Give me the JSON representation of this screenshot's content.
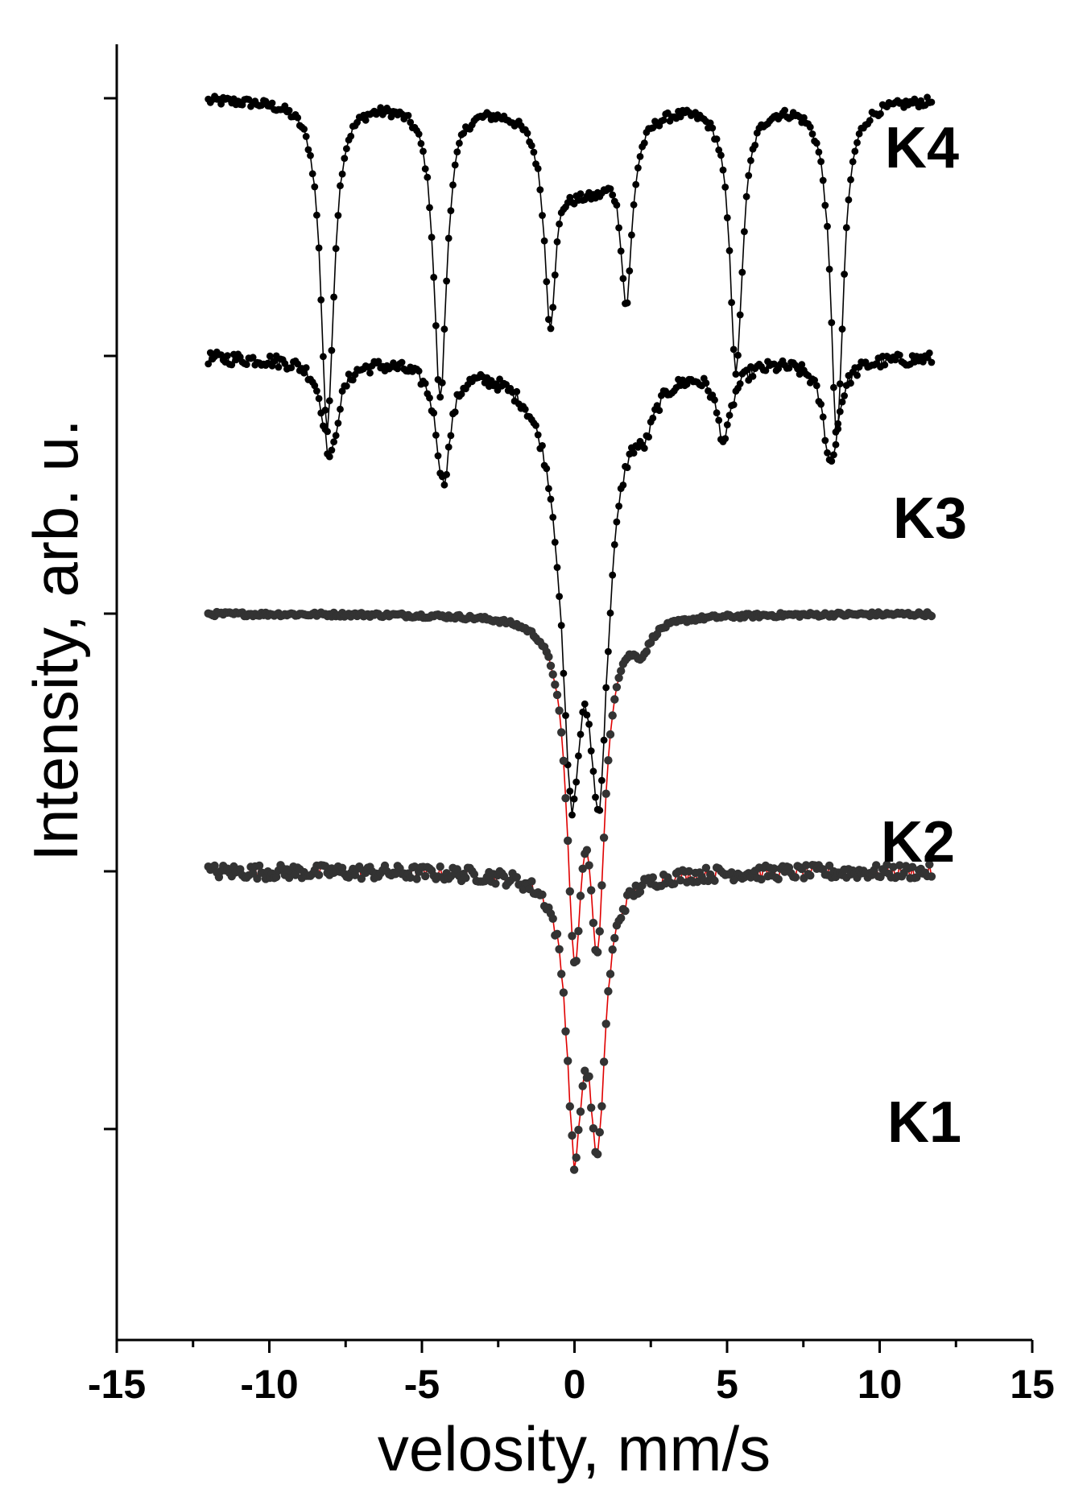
{
  "chart_data": {
    "type": "scatter",
    "xlabel": "velosity, mm/s",
    "ylabel": "Intensity, arb. u.",
    "xlim": [
      -15,
      15
    ],
    "x_ticks": [
      "-15",
      "-10",
      "-5",
      "0",
      "5",
      "10",
      "15"
    ],
    "y_tick_labels": "none",
    "grid": false,
    "legend": "none",
    "series": [
      {
        "name": "K4",
        "marker_color": "#000000",
        "line_color": "#000000",
        "baseline": 1.0,
        "peaks": [
          {
            "x": -8.1,
            "depth": 1.28,
            "width": 0.25
          },
          {
            "x": -4.4,
            "depth": 1.15,
            "width": 0.25
          },
          {
            "x": -0.8,
            "depth": 0.7,
            "width": 0.22
          },
          {
            "x": 1.7,
            "depth": 0.66,
            "width": 0.22
          },
          {
            "x": 5.3,
            "depth": 1.04,
            "width": 0.25
          },
          {
            "x": 8.6,
            "depth": 1.3,
            "width": 0.25
          },
          {
            "x": -0.1,
            "depth": 0.22,
            "width": 0.8
          },
          {
            "x": 0.8,
            "depth": 0.22,
            "width": 0.8
          }
        ]
      },
      {
        "name": "K3",
        "marker_color": "#000000",
        "line_color": "#000000",
        "baseline": 0.0,
        "peaks": [
          {
            "x": -8.0,
            "depth": 0.38,
            "width": 0.3
          },
          {
            "x": -4.3,
            "depth": 0.45,
            "width": 0.28
          },
          {
            "x": 4.9,
            "depth": 0.28,
            "width": 0.3
          },
          {
            "x": 8.4,
            "depth": 0.4,
            "width": 0.3
          },
          {
            "x": -0.1,
            "depth": 1.3,
            "width": 0.38
          },
          {
            "x": 0.8,
            "depth": 1.3,
            "width": 0.38
          },
          {
            "x": 2.3,
            "depth": 0.14,
            "width": 0.35
          },
          {
            "x": 0.35,
            "depth": 0.28,
            "width": 1.3
          }
        ]
      },
      {
        "name": "K2",
        "marker_color": "#333333",
        "line_color": "#e00000",
        "baseline": -1.0,
        "peaks": [
          {
            "x": 0.0,
            "depth": 1.2,
            "width": 0.3
          },
          {
            "x": 0.75,
            "depth": 1.15,
            "width": 0.3
          },
          {
            "x": 2.2,
            "depth": 0.1,
            "width": 0.35
          }
        ]
      },
      {
        "name": "K1",
        "marker_color": "#333333",
        "line_color": "#e00000",
        "baseline": -2.0,
        "peaks": [
          {
            "x": 0.0,
            "depth": 1.0,
            "width": 0.3
          },
          {
            "x": 0.75,
            "depth": 0.98,
            "width": 0.3
          }
        ]
      }
    ],
    "x_range_data": [
      -12,
      11.7
    ]
  }
}
